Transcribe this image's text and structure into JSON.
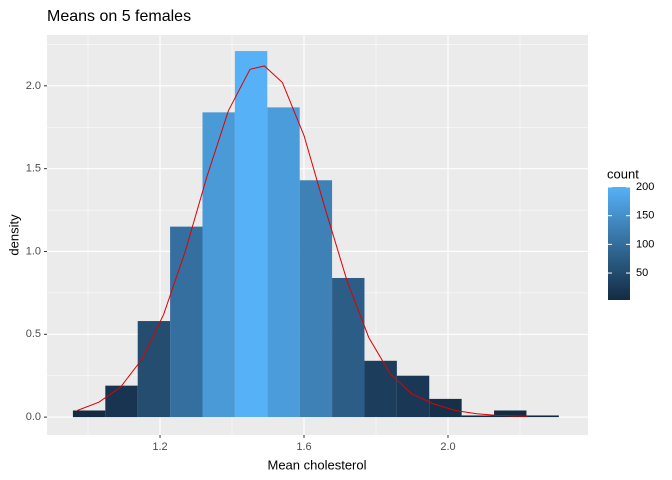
{
  "chart_data": {
    "type": "histogram",
    "title": "Means on 5 females",
    "x_label": "Mean cholesterol",
    "y_label": "density",
    "bins": [
      0.958,
      1.048,
      1.138,
      1.228,
      1.318,
      1.408,
      1.498,
      1.588,
      1.678,
      1.768,
      1.858,
      1.948,
      2.038,
      2.128,
      2.218,
      2.308
    ],
    "values": [
      0.04,
      0.19,
      0.58,
      1.15,
      1.84,
      2.21,
      1.87,
      1.43,
      0.84,
      0.34,
      0.25,
      0.11,
      0.01,
      0.04,
      0.01
    ],
    "colors": [
      "#132B43",
      "#183450",
      "#244D70",
      "#356F9F",
      "#4A9AD8",
      "#56B1F7",
      "#4B9CDA",
      "#3E81B6",
      "#2C5D86",
      "#1C3E5C",
      "#1A3855",
      "#153049",
      "#132B43",
      "#132B43",
      "#132B43"
    ],
    "density_curve": {
      "color": "#e00000",
      "x": [
        0.97,
        1.03,
        1.09,
        1.15,
        1.21,
        1.27,
        1.33,
        1.39,
        1.45,
        1.49,
        1.54,
        1.6,
        1.66,
        1.72,
        1.78,
        1.84,
        1.9,
        1.96,
        2.02,
        2.08,
        2.14,
        2.22
      ],
      "values": [
        0.04,
        0.09,
        0.18,
        0.35,
        0.62,
        1.0,
        1.45,
        1.85,
        2.1,
        2.12,
        2.02,
        1.7,
        1.25,
        0.82,
        0.48,
        0.26,
        0.14,
        0.08,
        0.04,
        0.02,
        0.01,
        0.005
      ]
    },
    "xlim": [
      0.886,
      2.389
    ],
    "ylim": [
      -0.108,
      2.307
    ],
    "xticks": [
      1.2,
      1.6,
      {
        "value": 2.0,
        "label": "2.0"
      }
    ],
    "yticks": [
      {
        "value": 0,
        "label": "0.0"
      },
      0.5,
      {
        "value": 1.0,
        "label": "1.0"
      },
      1.5,
      {
        "value": 2.0,
        "label": "2.0"
      }
    ],
    "grid": true,
    "legend": {
      "title": "count",
      "position": "right",
      "low_color": "#132B43",
      "high_color": "#56B1F7",
      "lim": [
        3,
        200
      ],
      "ticks": [
        50,
        100,
        150,
        200
      ]
    }
  }
}
